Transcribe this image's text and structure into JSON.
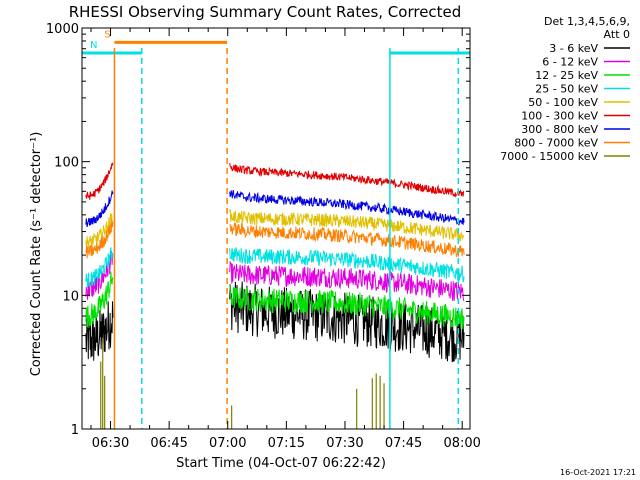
{
  "chart_data": {
    "type": "line",
    "title": "RHESSI Observing Summary Count Rates, Corrected",
    "ylabel": "Corrected Count Rate (s⁻¹ detector⁻¹)",
    "xlabel": "Start Time (04-Oct-07 06:22:42)",
    "footer": "16-Oct-2021 17:21",
    "y_scale": "log",
    "ylim": [
      1,
      1000
    ],
    "x_axis": {
      "start": "06:22:42",
      "end": "08:02:00"
    },
    "y_ticks": [
      {
        "value": 1,
        "label": "1"
      },
      {
        "value": 10,
        "label": "10"
      },
      {
        "value": 100,
        "label": "100"
      },
      {
        "value": 1000,
        "label": "1000"
      }
    ],
    "x_ticks": [
      {
        "time": "06:30",
        "label": "06:30"
      },
      {
        "time": "06:45",
        "label": "06:45"
      },
      {
        "time": "07:00",
        "label": "07:00"
      },
      {
        "time": "07:15",
        "label": "07:15"
      },
      {
        "time": "07:30",
        "label": "07:30"
      },
      {
        "time": "07:45",
        "label": "07:45"
      },
      {
        "time": "08:00",
        "label": "08:00"
      }
    ],
    "legend": {
      "header": [
        "Det 1,3,4,5,6,9,",
        "Att 0"
      ],
      "placement": "right"
    },
    "series": [
      {
        "name": "3 - 6 keV",
        "color": "#000000",
        "pre": [
          4.5,
          7
        ],
        "post": [
          9,
          5
        ],
        "noise": 0.2
      },
      {
        "name": "6 - 12 keV",
        "color": "#e000e0",
        "pre": [
          11,
          20
        ],
        "post": [
          15,
          11
        ],
        "noise": 0.08
      },
      {
        "name": "12 - 25 keV",
        "color": "#00e000",
        "pre": [
          7,
          14
        ],
        "post": [
          10,
          7
        ],
        "noise": 0.09
      },
      {
        "name": "25 - 50 keV",
        "color": "#00e0e0",
        "pre": [
          13,
          22
        ],
        "post": [
          21,
          15
        ],
        "noise": 0.06
      },
      {
        "name": "50 - 100 keV",
        "color": "#e0c000",
        "pre": [
          25,
          40
        ],
        "post": [
          40,
          29
        ],
        "noise": 0.05
      },
      {
        "name": "100 - 300 keV",
        "color": "#e00000",
        "pre": [
          55,
          100
        ],
        "post": [
          95,
          59
        ],
        "noise": 0.03
      },
      {
        "name": "300 - 800 keV",
        "color": "#0000e0",
        "pre": [
          35,
          60
        ],
        "post": [
          60,
          37
        ],
        "noise": 0.035
      },
      {
        "name": "800 - 7000 keV",
        "color": "#ff8000",
        "pre": [
          21,
          35
        ],
        "post": [
          33,
          22
        ],
        "noise": 0.05
      },
      {
        "name": "7000 - 15000 keV",
        "color": "#808000",
        "pre": [
          1,
          4
        ],
        "post": [
          1,
          1
        ],
        "noise": 0
      }
    ],
    "gaps": [
      {
        "from": "06:31:40",
        "to": "07:00:10"
      }
    ],
    "flag_bars": [
      {
        "label": "S",
        "color": "#ff8000",
        "start": "06:31:00",
        "end": "06:59:50",
        "level": 780
      },
      {
        "label": "N",
        "color": "#00e0e0",
        "start": "06:22:42",
        "end": "06:38:00",
        "level": 650
      },
      {
        "label": "",
        "color": "#00e0e0",
        "start": "07:41:30",
        "end": "08:02:00",
        "level": 650
      }
    ],
    "vlines": [
      {
        "time": "06:31:00",
        "color": "#ff8000",
        "style": "solid"
      },
      {
        "time": "06:38:00",
        "color": "#00e0e0",
        "style": "dashed"
      },
      {
        "time": "06:59:50",
        "color": "#ff8000",
        "style": "dashed"
      },
      {
        "time": "07:41:30",
        "color": "#00e0e0",
        "style": "solid"
      },
      {
        "time": "07:59:00",
        "color": "#00e0e0",
        "style": "dashed"
      }
    ]
  }
}
